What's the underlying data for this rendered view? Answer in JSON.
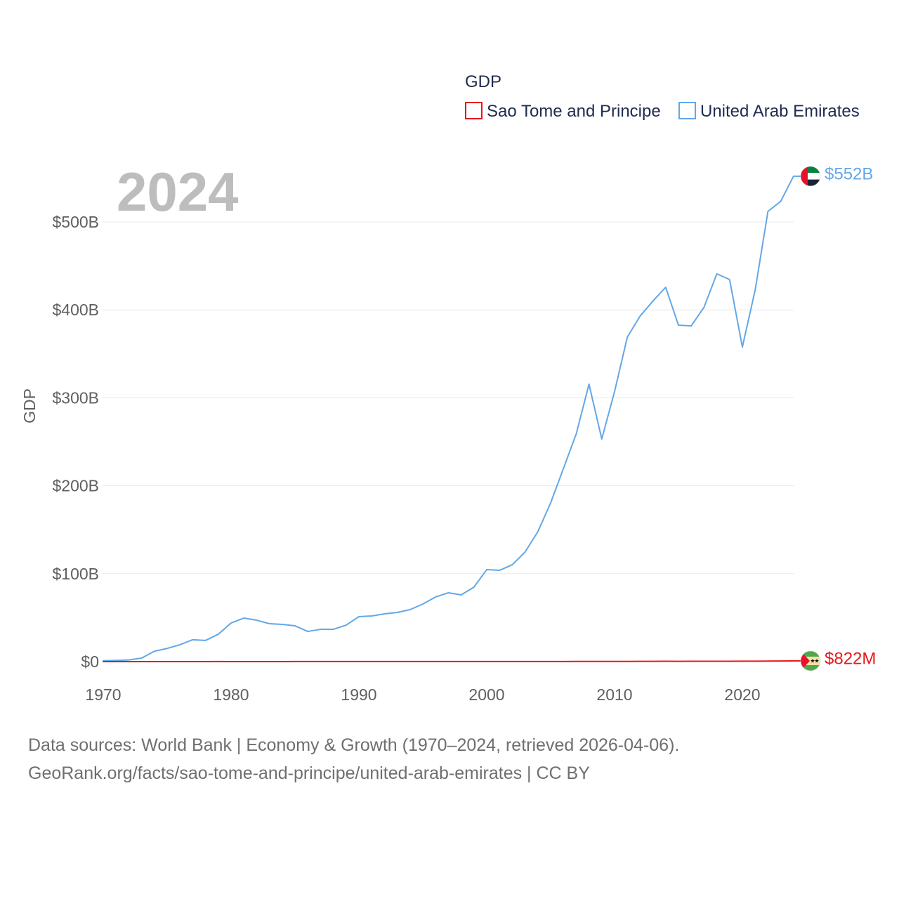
{
  "chart_data": {
    "type": "line",
    "title": "",
    "year_label": "2024",
    "legend": {
      "title": "GDP",
      "position": "top-right"
    },
    "xlabel": "",
    "ylabel": "GDP",
    "xlim": [
      1970,
      2024
    ],
    "ylim": [
      0,
      560
    ],
    "grid": true,
    "x_ticks": [
      {
        "value": 1970,
        "label": "1970"
      },
      {
        "value": 1980,
        "label": "1980"
      },
      {
        "value": 1990,
        "label": "1990"
      },
      {
        "value": 2000,
        "label": "2000"
      },
      {
        "value": 2010,
        "label": "2010"
      },
      {
        "value": 2020,
        "label": "2020"
      }
    ],
    "y_ticks": [
      {
        "value": 0,
        "label": "$0"
      },
      {
        "value": 100,
        "label": "$100B"
      },
      {
        "value": 200,
        "label": "$200B"
      },
      {
        "value": 300,
        "label": "$300B"
      },
      {
        "value": 400,
        "label": "$400B"
      },
      {
        "value": 500,
        "label": "$500B"
      }
    ],
    "x": [
      1970,
      1971,
      1972,
      1973,
      1974,
      1975,
      1976,
      1977,
      1978,
      1979,
      1980,
      1981,
      1982,
      1983,
      1984,
      1985,
      1986,
      1987,
      1988,
      1989,
      1990,
      1991,
      1992,
      1993,
      1994,
      1995,
      1996,
      1997,
      1998,
      1999,
      2000,
      2001,
      2002,
      2003,
      2004,
      2005,
      2006,
      2007,
      2008,
      2009,
      2010,
      2011,
      2012,
      2013,
      2014,
      2015,
      2016,
      2017,
      2018,
      2019,
      2020,
      2021,
      2022,
      2023,
      2024
    ],
    "series": [
      {
        "name": "Sao Tome and Principe",
        "color": "#e8171d",
        "flag_icon": "sao-tome-flag-icon",
        "end_label": "$822M",
        "values": [
          0.03,
          0.03,
          0.03,
          0.03,
          0.04,
          0.04,
          0.04,
          0.05,
          0.05,
          0.06,
          0.05,
          0.05,
          0.05,
          0.05,
          0.05,
          0.06,
          0.09,
          0.1,
          0.09,
          0.08,
          0.08,
          0.08,
          0.09,
          0.09,
          0.08,
          0.08,
          0.07,
          0.07,
          0.08,
          0.08,
          0.08,
          0.08,
          0.09,
          0.1,
          0.11,
          0.12,
          0.13,
          0.15,
          0.19,
          0.19,
          0.2,
          0.24,
          0.26,
          0.3,
          0.35,
          0.32,
          0.35,
          0.38,
          0.41,
          0.43,
          0.47,
          0.53,
          0.55,
          0.68,
          0.822
        ]
      },
      {
        "name": "United Arab Emirates",
        "color": "#63a7e7",
        "flag_icon": "uae-flag-icon",
        "end_label": "$552B",
        "values": [
          1.0,
          1.3,
          1.9,
          4.0,
          11.8,
          15.0,
          19.2,
          24.9,
          24.1,
          31.1,
          43.9,
          49.5,
          47.1,
          43.1,
          42.3,
          40.7,
          34.3,
          36.7,
          36.7,
          41.5,
          51.1,
          51.9,
          54.3,
          55.9,
          59.1,
          65.5,
          73.5,
          78.3,
          75.9,
          84.7,
          104.6,
          103.8,
          110.2,
          124.6,
          147.8,
          180.5,
          219.6,
          258.8,
          315.5,
          253.2,
          307.0,
          369.0,
          393.0,
          410.0,
          425.7,
          382.6,
          381.8,
          403.0,
          441.0,
          434.5,
          357.8,
          422.5,
          512.0,
          523.4,
          552.0
        ]
      }
    ]
  },
  "footer": {
    "line1": "Data sources: World Bank | Economy & Growth (1970–2024, retrieved 2026-04-06).",
    "line2": "GeoRank.org/facts/sao-tome-and-principe/united-arab-emirates | CC BY"
  }
}
